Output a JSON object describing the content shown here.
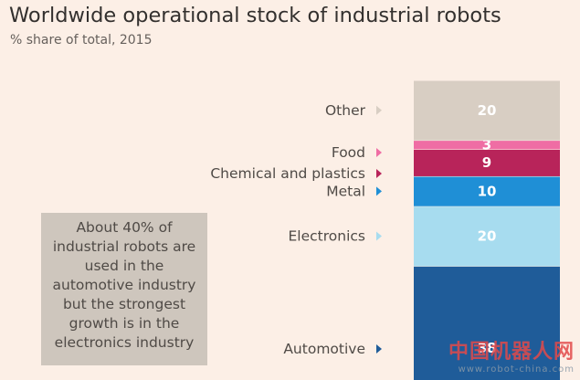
{
  "header": {
    "title": "Worldwide operational stock of industrial robots",
    "subtitle": "% share of total, 2015"
  },
  "note": {
    "text": "About 40% of industrial robots are used in the automotive industry but the strongest growth is in the electronics industry"
  },
  "watermark": {
    "brand": "中国机器人网",
    "url": "www.robot-china.com"
  },
  "chart_data": {
    "type": "bar",
    "stacked": true,
    "title": "Worldwide operational stock of industrial robots",
    "subtitle": "% share of total, 2015",
    "categories": [
      "Automotive",
      "Electronics",
      "Metal",
      "Chemical and plastics",
      "Food",
      "Other"
    ],
    "values": [
      38,
      20,
      10,
      9,
      3,
      20
    ],
    "colors": [
      "#1f5c99",
      "#a7dcef",
      "#1f8fd6",
      "#b8245a",
      "#ef6da4",
      "#d8cec3"
    ],
    "ylim": [
      0,
      100
    ]
  }
}
